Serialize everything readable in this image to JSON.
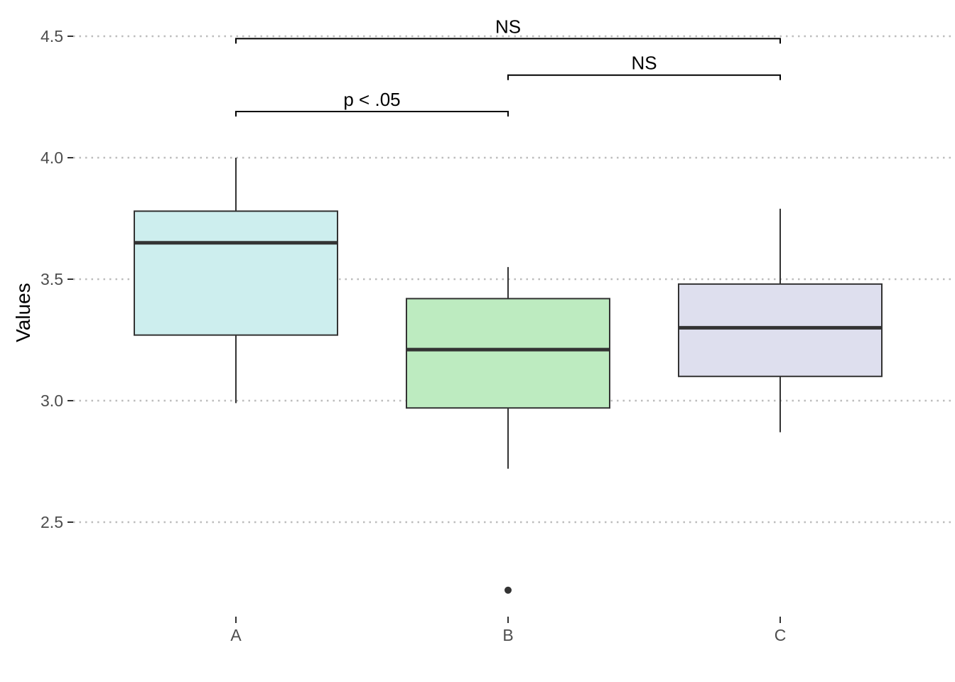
{
  "chart_data": {
    "type": "box",
    "title": "",
    "xlabel": "",
    "ylabel": "Values",
    "ylim": [
      2.03,
      4.52
    ],
    "yticks": [
      2.5,
      3.0,
      3.5,
      4.0,
      4.5
    ],
    "ytick_labels": [
      "2.5",
      "3.0",
      "3.5",
      "4.0",
      "4.5"
    ],
    "grid": "horizontal-dotted",
    "categories": [
      "A",
      "B",
      "C"
    ],
    "boxes": [
      {
        "category": "A",
        "whisker_low": 2.99,
        "q1": 3.27,
        "median": 3.65,
        "q3": 3.78,
        "whisker_high": 4.0,
        "outliers": [],
        "fill": "#cdeeee"
      },
      {
        "category": "B",
        "whisker_low": 2.72,
        "q1": 2.97,
        "median": 3.21,
        "q3": 3.42,
        "whisker_high": 3.55,
        "outliers": [
          2.22
        ],
        "fill": "#bdebc0"
      },
      {
        "category": "C",
        "whisker_low": 2.87,
        "q1": 3.1,
        "median": 3.3,
        "q3": 3.48,
        "whisker_high": 3.79,
        "outliers": [],
        "fill": "#dedfee"
      }
    ],
    "comparisons": [
      {
        "from": "A",
        "to": "B",
        "y": 4.19,
        "label": "p < .05"
      },
      {
        "from": "B",
        "to": "C",
        "y": 4.34,
        "label": "NS"
      },
      {
        "from": "A",
        "to": "C",
        "y": 4.49,
        "label": "NS"
      }
    ],
    "colors": {
      "box_outline": "#333333",
      "median": "#333333",
      "grid": "#bdbdbd",
      "tick_text": "#4d4d4d"
    }
  }
}
